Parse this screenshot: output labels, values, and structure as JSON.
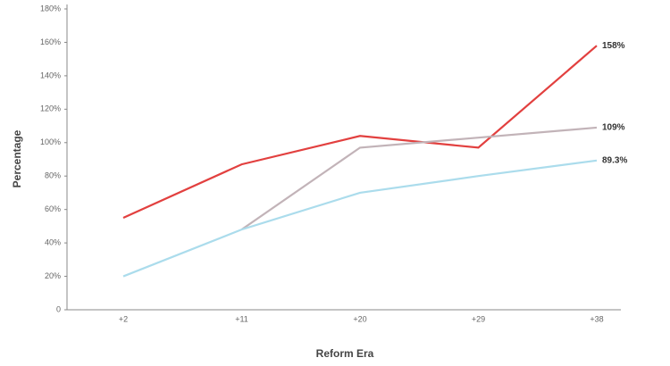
{
  "chart_data": {
    "type": "line",
    "x_label": "Reform Era",
    "y_label": "Percentage",
    "categories": [
      "+2",
      "+11",
      "+20",
      "+29",
      "+38"
    ],
    "series": [
      {
        "color": "#e2403f",
        "values": [
          55,
          87,
          104,
          97,
          158
        ],
        "value_labels": [
          null,
          null,
          null,
          null,
          "158%"
        ]
      },
      {
        "color": "#c2b3b8",
        "values": [
          null,
          48,
          97,
          103,
          109
        ],
        "value_labels": [
          null,
          null,
          null,
          null,
          "109%"
        ]
      },
      {
        "color": "#abdcec",
        "values": [
          20,
          48,
          70,
          80,
          89.3
        ],
        "value_labels": [
          null,
          null,
          null,
          null,
          "89.3%"
        ]
      }
    ],
    "ylim": [
      0,
      180
    ],
    "yticks": [
      0,
      {
        "value": 20,
        "label": "20%"
      },
      {
        "value": 40,
        "label": "40%"
      },
      {
        "value": 60,
        "label": "60%"
      },
      {
        "value": 80,
        "label": "80%"
      },
      {
        "value": 100,
        "label": "100%"
      },
      {
        "value": 120,
        "label": "120%"
      },
      {
        "value": 140,
        "label": "140%"
      },
      {
        "value": 160,
        "label": "160%"
      },
      {
        "value": 180,
        "label": "180%"
      }
    ]
  }
}
